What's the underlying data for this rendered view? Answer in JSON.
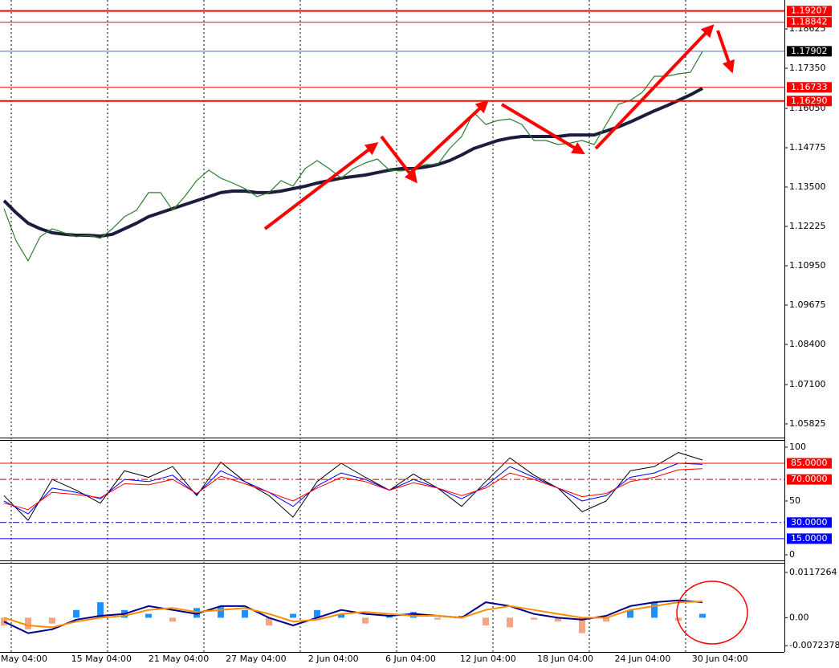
{
  "chart_data": [
    {
      "type": "line",
      "ylim": [
        1.05382,
        1.19563
      ],
      "yticks": [
        {
          "value": 1.18625,
          "label": "1.18625"
        },
        {
          "value": 1.1735,
          "label": "1.17350"
        },
        {
          "value": 1.1605,
          "label": "1.16050"
        },
        {
          "value": 1.14775,
          "label": "1.14775"
        },
        {
          "value": 1.135,
          "label": "1.13500"
        },
        {
          "value": 1.12225,
          "label": "1.12225"
        },
        {
          "value": 1.1095,
          "label": "1.10950"
        },
        {
          "value": 1.09675,
          "label": "1.09675"
        },
        {
          "value": 1.084,
          "label": "1.08400"
        },
        {
          "value": 1.071,
          "label": "1.07100"
        },
        {
          "value": 1.05825,
          "label": "1.05825"
        }
      ],
      "levels": [
        {
          "value": 1.19207,
          "label": "1.19207",
          "color": "#ff0000",
          "width": 2,
          "style": "solid",
          "box": "#ff0000"
        },
        {
          "value": 1.18842,
          "label": "1.18842",
          "color": "#ff0000",
          "width": 1,
          "style": "solid",
          "box": "#ff0000"
        },
        {
          "value": 1.17902,
          "label": "1.17902",
          "color": "#4169e1",
          "width": 1,
          "style": "solid",
          "box": "#000000"
        },
        {
          "value": 1.16733,
          "label": "1.16733",
          "color": "#ff0000",
          "width": 1,
          "style": "solid",
          "box": "#ff0000"
        },
        {
          "value": 1.1629,
          "label": "1.16290",
          "color": "#ff0000",
          "width": 2,
          "style": "solid",
          "box": "#ff0000"
        }
      ],
      "series": [
        {
          "color": "#1c1c3c",
          "width": 4,
          "values": [
            1.1306,
            1.1267,
            1.1233,
            1.1215,
            1.1202,
            1.1197,
            1.1194,
            1.1194,
            1.1191,
            1.1197,
            1.1215,
            1.1233,
            1.1254,
            1.1267,
            1.128,
            1.1293,
            1.1306,
            1.1319,
            1.1332,
            1.1337,
            1.1337,
            1.1332,
            1.1332,
            1.1337,
            1.1345,
            1.1353,
            1.1363,
            1.1371,
            1.1379,
            1.1384,
            1.1389,
            1.1397,
            1.1405,
            1.141,
            1.141,
            1.1415,
            1.1423,
            1.1436,
            1.1454,
            1.1475,
            1.1488,
            1.1501,
            1.1509,
            1.1514,
            1.1514,
            1.1514,
            1.1514,
            1.1519,
            1.1519,
            1.1519,
            1.1532,
            1.1545,
            1.1561,
            1.1579,
            1.1597,
            1.1613,
            1.1631,
            1.1649,
            1.167
          ]
        },
        {
          "color": "#2e7d32",
          "width": 1.2,
          "values": [
            1.128,
            1.1176,
            1.1111,
            1.1189,
            1.1215,
            1.1202,
            1.1189,
            1.1194,
            1.1184,
            1.1215,
            1.1254,
            1.1275,
            1.1332,
            1.1332,
            1.1275,
            1.1319,
            1.1371,
            1.1405,
            1.1379,
            1.1363,
            1.1345,
            1.1319,
            1.1332,
            1.1371,
            1.1353,
            1.141,
            1.1436,
            1.141,
            1.1379,
            1.141,
            1.1428,
            1.1441,
            1.1405,
            1.1402,
            1.141,
            1.1423,
            1.1423,
            1.1475,
            1.1514,
            1.1592,
            1.1553,
            1.1566,
            1.1571,
            1.1553,
            1.1501,
            1.1501,
            1.1488,
            1.1493,
            1.1501,
            1.1488,
            1.1553,
            1.1618,
            1.1631,
            1.1657,
            1.1709,
            1.1709,
            1.1717,
            1.1722,
            1.179
          ]
        }
      ]
    },
    {
      "type": "line",
      "ylim": [
        -5.2,
        105.9
      ],
      "yticks": [
        100,
        50,
        0
      ],
      "levels": [
        {
          "value": 85,
          "label": "85.0000",
          "color": "#ff0000",
          "width": 1,
          "style": "solid",
          "box": "#ff0000"
        },
        {
          "value": 70,
          "label": "70.0000",
          "color": "#cc0000",
          "width": 1,
          "style": "dashdot",
          "box": "#ff0000"
        },
        {
          "value": 30,
          "label": "30.0000",
          "color": "#0000cc",
          "width": 1,
          "style": "dashdot",
          "box": "#0000ff"
        },
        {
          "value": 15,
          "label": "15.0000",
          "color": "#0000ff",
          "width": 1,
          "style": "solid",
          "box": "#0000ff"
        }
      ],
      "series": [
        {
          "color": "#000000",
          "width": 1,
          "values": [
            55,
            32,
            70,
            60,
            48,
            78,
            72,
            82,
            55,
            86,
            68,
            55,
            35,
            68,
            85,
            72,
            60,
            75,
            62,
            45,
            68,
            90,
            74,
            62,
            40,
            50,
            78,
            82,
            95,
            88
          ]
        },
        {
          "color": "#0000ff",
          "width": 1,
          "values": [
            50,
            38,
            62,
            58,
            52,
            70,
            68,
            74,
            56,
            78,
            68,
            58,
            45,
            64,
            76,
            70,
            60,
            70,
            62,
            52,
            64,
            82,
            72,
            62,
            50,
            55,
            72,
            76,
            85,
            84
          ]
        },
        {
          "color": "#ff0000",
          "width": 1,
          "values": [
            48,
            42,
            58,
            56,
            53,
            66,
            65,
            70,
            57,
            73,
            66,
            58,
            50,
            62,
            72,
            68,
            60,
            67,
            62,
            55,
            62,
            76,
            70,
            62,
            54,
            57,
            68,
            72,
            79,
            80
          ]
        }
      ]
    },
    {
      "type": "bar",
      "ylim": [
        -0.00885,
        0.01399
      ],
      "yticks": [
        0.0117264,
        {
          "value": 0,
          "label": "0.00"
        },
        -0.0072378
      ],
      "series": [
        {
          "color": "#1e90ff",
          "negative_color": "#f4a582",
          "values": [
            -0.002,
            -0.003,
            -0.0015,
            0.002,
            0.004,
            0.002,
            0.001,
            -0.001,
            0.0025,
            0.003,
            0.002,
            -0.002,
            0.001,
            0.002,
            0.001,
            -0.0015,
            0.0005,
            0.0015,
            -0.0005,
            0.0005,
            -0.002,
            -0.0025,
            -0.0005,
            -0.001,
            -0.004,
            -0.001,
            0.002,
            0.004,
            -0.0008,
            0.001
          ]
        },
        {
          "type": "line",
          "color": "#00008b",
          "width": 2,
          "values": [
            -0.001,
            -0.004,
            -0.003,
            -0.0005,
            0.0005,
            0.001,
            0.003,
            0.002,
            0.001,
            0.003,
            0.003,
            0,
            -0.002,
            0,
            0.002,
            0.001,
            0.0005,
            0.001,
            0.0005,
            0,
            0.004,
            0.003,
            0.001,
            0,
            -0.0005,
            0.0005,
            0.003,
            0.004,
            0.0045,
            0.004
          ]
        },
        {
          "type": "line",
          "color": "#ff8c00",
          "width": 2,
          "values": [
            0,
            -0.002,
            -0.0025,
            -0.001,
            0,
            0.0005,
            0.002,
            0.0025,
            0.0015,
            0.002,
            0.0025,
            0.001,
            -0.001,
            -0.0005,
            0.001,
            0.0015,
            0.001,
            0.0005,
            0.0005,
            0,
            0.002,
            0.003,
            0.002,
            0.001,
            0,
            0,
            0.002,
            0.003,
            0.004,
            0.0042
          ]
        }
      ],
      "time_labels": [
        "May 04:00",
        "15 May 04:00",
        "21 May 04:00",
        "27 May 04:00",
        "2 Jun 04:00",
        "6 Jun 04:00",
        "12 Jun 04:00",
        "18 Jun 04:00",
        "24 Jun 04:00",
        "30 Jun 04:00"
      ]
    }
  ]
}
